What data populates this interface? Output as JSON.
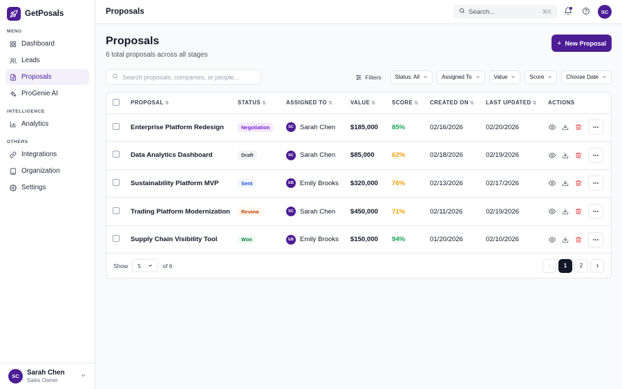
{
  "app": {
    "brand_name": "GetPosals"
  },
  "sidebar": {
    "menu_label": "MENU",
    "menu_items": [
      {
        "label": "Dashboard",
        "icon": "grid-icon",
        "active": false
      },
      {
        "label": "Leads",
        "icon": "users-icon",
        "active": false
      },
      {
        "label": "Proposals",
        "icon": "document-icon",
        "active": true
      },
      {
        "label": "ProGenie AI",
        "icon": "sparkles-icon",
        "active": false
      }
    ],
    "intelligence_label": "INTELLIGENCE",
    "intelligence_items": [
      {
        "label": "Analytics",
        "icon": "bar-chart-icon",
        "active": false
      }
    ],
    "others_label": "OTHERS",
    "others_items": [
      {
        "label": "Integrations",
        "icon": "link-icon",
        "active": false
      },
      {
        "label": "Organization",
        "icon": "building-icon",
        "active": false
      },
      {
        "label": "Settings",
        "icon": "gear-icon",
        "active": false
      }
    ],
    "user": {
      "initials": "SC",
      "name": "Sarah Chen",
      "role": "Sales Owner"
    }
  },
  "topbar": {
    "title": "Proposals",
    "search_placeholder": "Search...",
    "search_shortcut": "⌘K",
    "user_initials": "SC"
  },
  "page": {
    "title": "Proposals",
    "subtitle": "6 total proposals across all stages",
    "new_button_label": "New Proposal"
  },
  "toolbar": {
    "search_placeholder": "Search proposals, companies, or people...",
    "filters_label": "Filters",
    "dropdowns": [
      "Status: All",
      "Assigned To",
      "Value",
      "Score",
      "Choose Date"
    ]
  },
  "table": {
    "columns": [
      "PROPOSAL",
      "STATUS",
      "ASSIGNED TO",
      "VALUE",
      "SCORE",
      "CREATED ON",
      "LAST UPDATED",
      "ACTIONS"
    ],
    "rows": [
      {
        "proposal": "Enterprise Platform Redesign",
        "status": "Negotiation",
        "status_color": "#7e22ce",
        "status_bg": "#f3e8ff",
        "assignee_initials": "SC",
        "assignee": "Sarah Chen",
        "value": "$185,000",
        "score": "85%",
        "score_color": "#16a34a",
        "created": "02/16/2026",
        "updated": "02/20/2026"
      },
      {
        "proposal": "Data Analytics Dashboard",
        "status": "Draft",
        "status_color": "#374151",
        "status_bg": "#f3f4f6",
        "assignee_initials": "SC",
        "assignee": "Sarah Chen",
        "value": "$85,000",
        "score": "62%",
        "score_color": "#f59e0b",
        "created": "02/18/2026",
        "updated": "02/19/2026"
      },
      {
        "proposal": "Sustainability Platform MVP",
        "status": "Sent",
        "status_color": "#1d4ed8",
        "status_bg": "#eff6ff",
        "assignee_initials": "EB",
        "assignee": "Emily Brooks",
        "value": "$320,000",
        "score": "76%",
        "score_color": "#f59e0b",
        "created": "02/13/2026",
        "updated": "02/17/2026"
      },
      {
        "proposal": "Trading Platform Modernization",
        "status": "Review",
        "status_color": "#c2410c",
        "status_bg": "#fff7ed",
        "assignee_initials": "SC",
        "assignee": "Sarah Chen",
        "value": "$450,000",
        "score": "71%",
        "score_color": "#f59e0b",
        "created": "02/11/2026",
        "updated": "02/19/2026"
      },
      {
        "proposal": "Supply Chain Visibility Tool",
        "status": "Won",
        "status_color": "#15803d",
        "status_bg": "#f0fdf4",
        "assignee_initials": "EB",
        "assignee": "Emily Brooks",
        "value": "$150,000",
        "score": "94%",
        "score_color": "#16a34a",
        "created": "01/20/2026",
        "updated": "02/10/2026"
      }
    ]
  },
  "footer": {
    "show_label": "Show",
    "page_size": "5",
    "of_label": "of 6",
    "pages": [
      "1",
      "2"
    ],
    "current_page": "1"
  },
  "colors": {
    "accent": "#4c1d95",
    "delete": "#ef4444"
  }
}
